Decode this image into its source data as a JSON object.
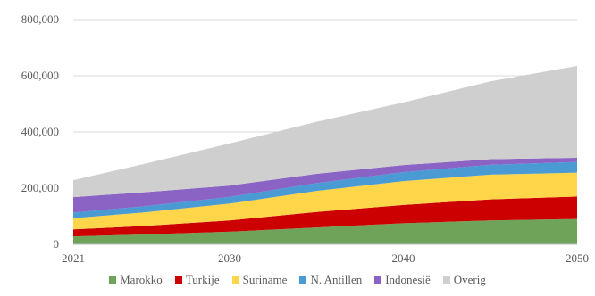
{
  "chart_data": {
    "type": "area",
    "stacked": true,
    "x": [
      2021,
      2025,
      2030,
      2035,
      2040,
      2045,
      2050
    ],
    "xticks": [
      "2021",
      "2030",
      "2040",
      "2050"
    ],
    "yticks": [
      "0",
      "200,000",
      "400,000",
      "600,000",
      "800,000"
    ],
    "ylim": [
      0,
      800000
    ],
    "grid": "horizontal",
    "legend_position": "bottom",
    "series": [
      {
        "name": "Marokko",
        "color": "#70a35a",
        "values": [
          28000,
          35000,
          45000,
          60000,
          75000,
          85000,
          90000
        ]
      },
      {
        "name": "Turkije",
        "color": "#cc0000",
        "values": [
          25000,
          30000,
          40000,
          55000,
          65000,
          75000,
          80000
        ]
      },
      {
        "name": "Suriname",
        "color": "#ffd54a",
        "values": [
          40000,
          48000,
          60000,
          75000,
          85000,
          88000,
          85000
        ]
      },
      {
        "name": "N. Antillen",
        "color": "#4a9ad4",
        "values": [
          20000,
          22000,
          24000,
          28000,
          32000,
          35000,
          38000
        ]
      },
      {
        "name": "Indonesië",
        "color": "#8a63c4",
        "values": [
          55000,
          50000,
          40000,
          33000,
          25000,
          20000,
          15000
        ]
      },
      {
        "name": "Overig",
        "color": "#cfcfcf",
        "values": [
          60000,
          100000,
          150000,
          185000,
          223000,
          277000,
          327000
        ]
      }
    ]
  }
}
